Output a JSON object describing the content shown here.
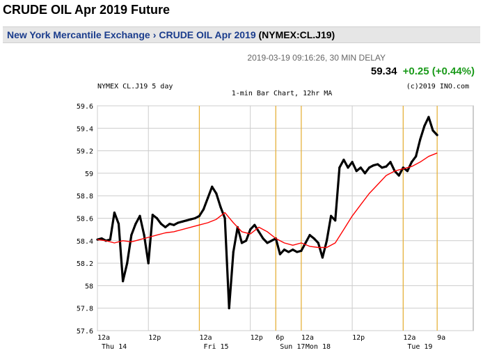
{
  "page": {
    "title": "CRUDE OIL Apr 2019 Future"
  },
  "breadcrumb": {
    "exchange": "New York Mercantile Exchange",
    "separator": "›",
    "contract": "CRUDE OIL Apr 2019",
    "code": "(NYMEX:CL.J19)"
  },
  "quote": {
    "timestamp": "2019-03-19 09:16:26, 30 MIN DELAY",
    "price": "59.34",
    "change": "+0.25 (+0.44%)",
    "change_color": "#1a9a1a"
  },
  "chart_data": {
    "type": "line",
    "header_left": "NYMEX CL.J19 5 day",
    "header_center": "1-min Bar Chart, 12hr MA",
    "header_right": "(c)2019 INO.com",
    "ylim": [
      57.6,
      59.6
    ],
    "yticks": [
      "59.6",
      "59.4",
      "59.2",
      "59",
      "58.8",
      "58.6",
      "58.4",
      "58.2",
      "58",
      "57.8",
      "57.6"
    ],
    "xlim": [
      0,
      88.5
    ],
    "xticks": [
      {
        "x": 0,
        "label": "12a"
      },
      {
        "x": 12,
        "label": "12p"
      },
      {
        "x": 24,
        "label": "12a"
      },
      {
        "x": 36,
        "label": "12p"
      },
      {
        "x": 42,
        "label": "6p"
      },
      {
        "x": 48,
        "label": "12a"
      },
      {
        "x": 60,
        "label": "12p"
      },
      {
        "x": 72,
        "label": "12a"
      },
      {
        "x": 80,
        "label": "9a"
      }
    ],
    "day_labels": [
      {
        "x": 0,
        "label": "Thu 14"
      },
      {
        "x": 24,
        "label": "Fri 15"
      },
      {
        "x": 42,
        "label": "Sun 17"
      },
      {
        "x": 48,
        "label": "Mon 18"
      },
      {
        "x": 72,
        "label": "Tue 19"
      }
    ],
    "day_markers": [
      24,
      42,
      48,
      72,
      80
    ],
    "grid": true,
    "colors": {
      "price": "#000000",
      "ma": "#ff0000",
      "marker": "#e8b030",
      "grid": "#cccccc"
    },
    "series": [
      {
        "name": "",
        "role": "price",
        "x": [
          0,
          1,
          2,
          3,
          4,
          5,
          6,
          7,
          8,
          9,
          10,
          11,
          12,
          13,
          14,
          15,
          16,
          17,
          18,
          19,
          20,
          21,
          22,
          23,
          24,
          25,
          26,
          27,
          28,
          29,
          30,
          31,
          32,
          33,
          34,
          35,
          36,
          37,
          38,
          39,
          40,
          41,
          42,
          43,
          44,
          45,
          46,
          47,
          48,
          49,
          50,
          51,
          52,
          53,
          54,
          55,
          56,
          57,
          58,
          59,
          60,
          61,
          62,
          63,
          64,
          65,
          66,
          67,
          68,
          69,
          70,
          71,
          72,
          73,
          74,
          75,
          76,
          77,
          78,
          79,
          80
        ],
        "y": [
          58.41,
          58.42,
          58.4,
          58.41,
          58.65,
          58.55,
          58.04,
          58.2,
          58.45,
          58.55,
          58.62,
          58.45,
          58.2,
          58.63,
          58.6,
          58.55,
          58.52,
          58.55,
          58.54,
          58.56,
          58.57,
          58.58,
          58.59,
          58.6,
          58.62,
          58.68,
          58.78,
          58.88,
          58.82,
          58.7,
          58.6,
          57.8,
          58.3,
          58.52,
          58.38,
          58.4,
          58.5,
          58.54,
          58.48,
          58.42,
          58.38,
          58.4,
          58.42,
          58.28,
          58.32,
          58.3,
          58.32,
          58.3,
          58.31,
          58.38,
          58.45,
          58.42,
          58.38,
          58.25,
          58.4,
          58.62,
          58.58,
          59.05,
          59.12,
          59.05,
          59.1,
          59.02,
          59.05,
          59.0,
          59.05,
          59.07,
          59.08,
          59.05,
          59.06,
          59.1,
          59.02,
          58.98,
          59.05,
          59.02,
          59.1,
          59.15,
          59.3,
          59.42,
          59.5,
          59.38,
          59.34
        ]
      },
      {
        "name": "",
        "role": "ma",
        "x": [
          0,
          2,
          4,
          6,
          8,
          10,
          12,
          14,
          16,
          18,
          20,
          22,
          24,
          26,
          28,
          30,
          32,
          34,
          36,
          38,
          40,
          42,
          44,
          46,
          48,
          50,
          52,
          54,
          56,
          58,
          60,
          62,
          64,
          66,
          68,
          70,
          72,
          74,
          76,
          78,
          80
        ],
        "y": [
          58.41,
          58.4,
          58.38,
          58.4,
          58.39,
          58.41,
          58.43,
          58.45,
          58.47,
          58.48,
          58.5,
          58.52,
          58.54,
          58.56,
          58.59,
          58.65,
          58.56,
          58.48,
          58.46,
          58.52,
          58.48,
          58.42,
          58.38,
          58.36,
          58.38,
          58.35,
          58.34,
          58.34,
          58.38,
          58.5,
          58.62,
          58.72,
          58.82,
          58.9,
          58.98,
          59.02,
          59.04,
          59.06,
          59.1,
          59.15,
          59.18
        ]
      }
    ]
  }
}
